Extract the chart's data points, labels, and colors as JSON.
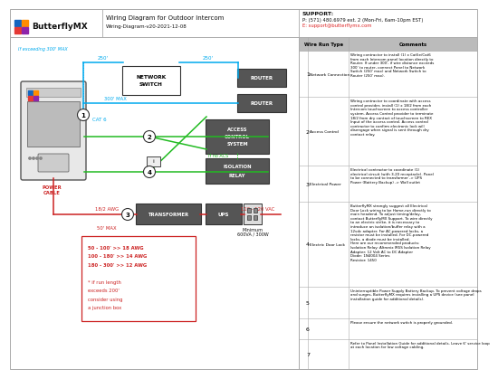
{
  "title": "Wiring Diagram for Outdoor Intercom",
  "subtitle": "Wiring-Diagram-v20-2021-12-08",
  "support_line1": "SUPPORT:",
  "support_line2": "P: (571) 480.6979 ext. 2 (Mon-Fri, 6am-10pm EST)",
  "support_line3": "E: support@butterflymx.com",
  "bg_color": "#ffffff",
  "wire_blue": "#00aaee",
  "wire_green": "#22bb22",
  "wire_red": "#cc2222",
  "logo_blue": "#1565c0",
  "logo_orange": "#ff8c00",
  "logo_red": "#e53935",
  "logo_purple": "#8e24aa",
  "table_rows": [
    {
      "num": "1",
      "type": "Network Connection",
      "comment": "Wiring contractor to install (1) x Cat5e/Cat6\nfrom each Intercom panel location directly to\nRouter. If under 300', if wire distance exceeds\n300' to router, connect Panel to Network\nSwitch (250' max) and Network Switch to\nRouter (250' max)."
    },
    {
      "num": "2",
      "type": "Access Control",
      "comment": "Wiring contractor to coordinate with access\ncontrol provider, install (1) x 18/2 from each\nIntercom touchscreen to access controller\nsystem. Access Control provider to terminate\n18/2 from dry contact of touchscreen to REX\nInput of the access control. Access control\ncontractor to confirm electronic lock will\ndisengage when signal is sent through dry\ncontact relay."
    },
    {
      "num": "3",
      "type": "Electrical Power",
      "comment": "Electrical contractor to coordinate (1)\nelectrical circuit (with 3-20 receptacle). Panel\nto be connected to transformer -> UPS\nPower (Battery Backup) -> Wall outlet"
    },
    {
      "num": "4",
      "type": "Electric Door Lock",
      "comment": "ButterflyMX strongly suggest all Electrical\nDoor Lock wiring to be Home-run directly to\nmain headend. To adjust timing/delay,\ncontact ButterflyMX Support. To wire directly\nto an electric strike, it is necessary to\nintroduce an isolation/buffer relay with a\n12vdc adapter. For AC-powered locks, a\nresistor must be installed. For DC-powered\nlocks, a diode must be installed.\nHere are our recommended products:\nIsolation Relay: Altronix IR5S Isolation Relay\nAdapter: 12 Volt AC to DC Adapter\nDiode: 1N4004 Series\nResistor: 1450"
    },
    {
      "num": "5",
      "type": "",
      "comment": "Uninterruptible Power Supply Battery Backup. To prevent voltage drops\nand surges, ButterflyMX requires installing a UPS device (see panel\ninstallation guide for additional details)."
    },
    {
      "num": "6",
      "type": "",
      "comment": "Please ensure the network switch is properly grounded."
    },
    {
      "num": "7",
      "type": "",
      "comment": "Refer to Panel Installation Guide for additional details. Leave 6' service loop\nat each location for low voltage cabling."
    }
  ]
}
